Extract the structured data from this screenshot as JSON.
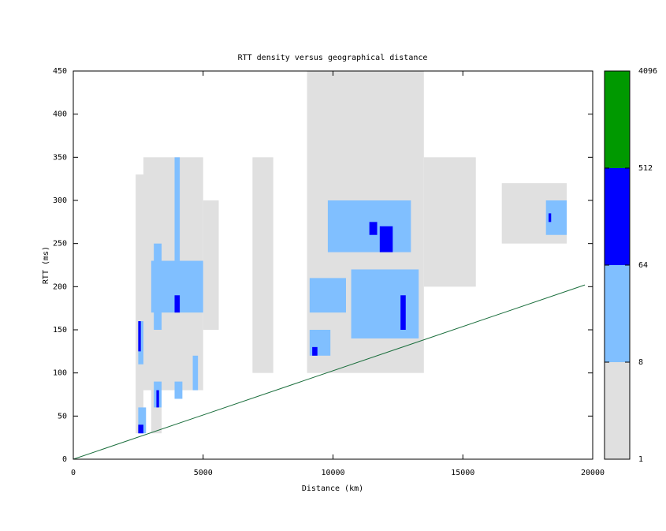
{
  "chart_data": {
    "type": "heatmap",
    "title": "RTT density versus geographical distance",
    "x_label": "Distance (km)",
    "y_label": "RTT (ms)",
    "xlim": [
      0,
      20000
    ],
    "xticks": [
      0,
      5000,
      10000,
      15000,
      20000
    ],
    "ylim": [
      0,
      450
    ],
    "yticks": [
      0,
      50,
      100,
      150,
      200,
      250,
      300,
      350,
      400,
      450
    ],
    "cells": [
      {
        "x": [
          2400,
          2700
        ],
        "y": [
          30,
          330
        ],
        "value": 3
      },
      {
        "x": [
          2700,
          5000
        ],
        "y": [
          80,
          350
        ],
        "value": 3
      },
      {
        "x": [
          3000,
          3400
        ],
        "y": [
          30,
          130
        ],
        "value": 3
      },
      {
        "x": [
          5000,
          5600
        ],
        "y": [
          150,
          300
        ],
        "value": 2
      },
      {
        "x": [
          6900,
          7700
        ],
        "y": [
          100,
          350
        ],
        "value": 2
      },
      {
        "x": [
          9000,
          13500
        ],
        "y": [
          100,
          450
        ],
        "value": 3
      },
      {
        "x": [
          13500,
          15500
        ],
        "y": [
          200,
          350
        ],
        "value": 2
      },
      {
        "x": [
          16500,
          19000
        ],
        "y": [
          250,
          320
        ],
        "value": 2
      },
      {
        "x": [
          2500,
          2800
        ],
        "y": [
          30,
          60
        ],
        "value": 20
      },
      {
        "x": [
          2500,
          2700
        ],
        "y": [
          110,
          160
        ],
        "value": 20
      },
      {
        "x": [
          3000,
          5000
        ],
        "y": [
          170,
          230
        ],
        "value": 20
      },
      {
        "x": [
          3100,
          3400
        ],
        "y": [
          150,
          250
        ],
        "value": 20
      },
      {
        "x": [
          3100,
          3400
        ],
        "y": [
          60,
          90
        ],
        "value": 20
      },
      {
        "x": [
          3900,
          4200
        ],
        "y": [
          70,
          90
        ],
        "value": 20
      },
      {
        "x": [
          3900,
          4100
        ],
        "y": [
          230,
          350
        ],
        "value": 20
      },
      {
        "x": [
          4600,
          4800
        ],
        "y": [
          80,
          120
        ],
        "value": 20
      },
      {
        "x": [
          9100,
          9900
        ],
        "y": [
          120,
          150
        ],
        "value": 20
      },
      {
        "x": [
          9100,
          10500
        ],
        "y": [
          170,
          210
        ],
        "value": 20
      },
      {
        "x": [
          9800,
          13000
        ],
        "y": [
          240,
          300
        ],
        "value": 20
      },
      {
        "x": [
          10700,
          13300
        ],
        "y": [
          140,
          220
        ],
        "value": 20
      },
      {
        "x": [
          18200,
          19000
        ],
        "y": [
          260,
          300
        ],
        "value": 20
      },
      {
        "x": [
          2500,
          2700
        ],
        "y": [
          30,
          40
        ],
        "value": 100
      },
      {
        "x": [
          2500,
          2600
        ],
        "y": [
          125,
          160
        ],
        "value": 100
      },
      {
        "x": [
          3200,
          3300
        ],
        "y": [
          60,
          80
        ],
        "value": 100
      },
      {
        "x": [
          3900,
          4100
        ],
        "y": [
          170,
          190
        ],
        "value": 100
      },
      {
        "x": [
          9200,
          9400
        ],
        "y": [
          120,
          130
        ],
        "value": 100
      },
      {
        "x": [
          11800,
          12300
        ],
        "y": [
          240,
          270
        ],
        "value": 100
      },
      {
        "x": [
          11400,
          11700
        ],
        "y": [
          260,
          275
        ],
        "value": 100
      },
      {
        "x": [
          12600,
          12800
        ],
        "y": [
          150,
          190
        ],
        "value": 100
      },
      {
        "x": [
          18300,
          18400
        ],
        "y": [
          275,
          285
        ],
        "value": 100
      }
    ],
    "line": {
      "x": [
        0,
        19700
      ],
      "y": [
        0,
        202
      ],
      "color": "#1a6e3c"
    },
    "colorbar": {
      "ticks": [
        1,
        8,
        64,
        512,
        4096
      ],
      "lim": [
        1,
        4096
      ],
      "log": true,
      "colors": [
        "#e0e0e0",
        "#80bfff",
        "#0000ff",
        "#009900"
      ]
    }
  }
}
